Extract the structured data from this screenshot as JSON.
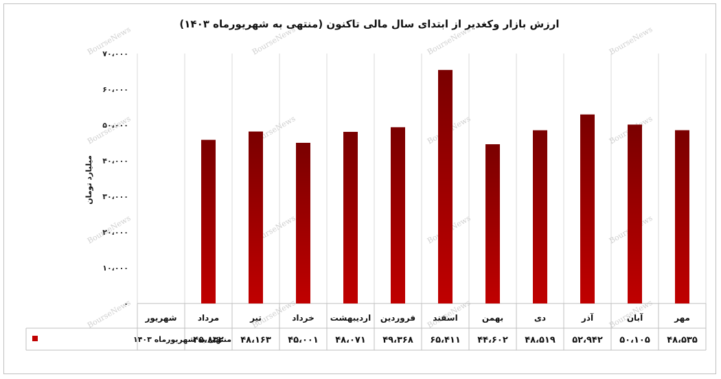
{
  "chart_data": {
    "type": "bar",
    "title": "ارزش بازار وکغدیر از ابتدای سال مالی تاکنون (منتهی به شهریورماه ۱۴۰۳)",
    "ylabel": "میلیارد تومان",
    "xlabel": "",
    "ylim": [
      0,
      70000
    ],
    "yticks": [
      0,
      10000,
      20000,
      30000,
      40000,
      50000,
      60000,
      70000
    ],
    "ytick_labels": [
      "۰",
      "۱۰،۰۰۰",
      "۲۰،۰۰۰",
      "۳۰،۰۰۰",
      "۴۰،۰۰۰",
      "۵۰،۰۰۰",
      "۶۰،۰۰۰",
      "۷۰،۰۰۰"
    ],
    "categories": [
      "شهریور",
      "مرداد",
      "تیر",
      "خرداد",
      "اردیبهشت",
      "فروردین",
      "اسفند",
      "بهمن",
      "دی",
      "آذر",
      "آبان",
      "مهر"
    ],
    "series": [
      {
        "name": "منتهی به شهریورماه ۱۴۰۳",
        "color": "#c00000",
        "values": [
          null,
          45832,
          48163,
          45001,
          48071,
          49368,
          65411,
          44602,
          48519,
          52942,
          50105,
          48535
        ],
        "value_labels": [
          "",
          "۴۵،۸۳۲",
          "۴۸،۱۶۳",
          "۴۵،۰۰۱",
          "۴۸،۰۷۱",
          "۴۹،۳۶۸",
          "۶۵،۴۱۱",
          "۴۴،۶۰۲",
          "۴۸،۵۱۹",
          "۵۲،۹۴۲",
          "۵۰،۱۰۵",
          "۴۸،۵۳۵"
        ]
      }
    ],
    "grid": "vertical",
    "legend": "data-table",
    "watermark": "BourseNews"
  }
}
